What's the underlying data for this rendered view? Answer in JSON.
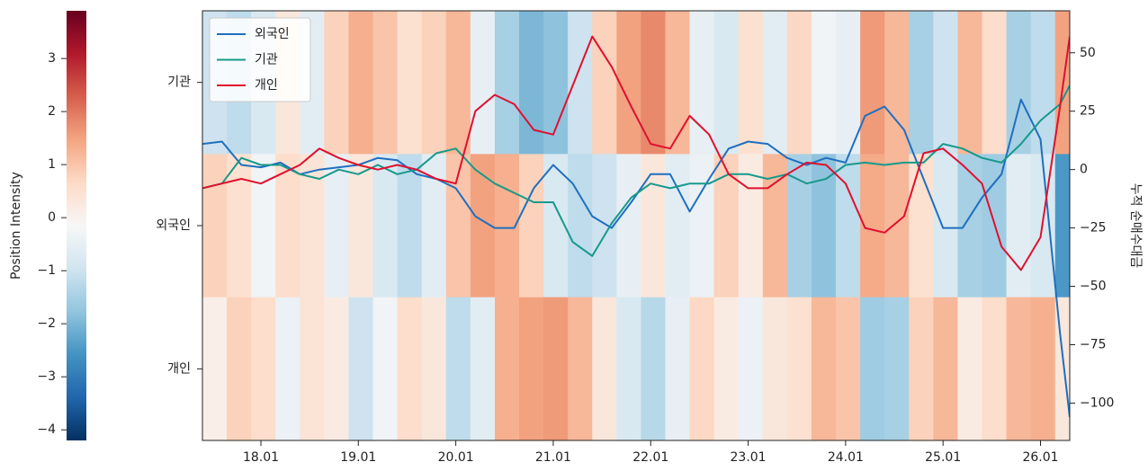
{
  "chart_data": {
    "type": "heatmap",
    "colorbar_label": "Position Intensity",
    "y2label": "누적 순매수대금",
    "rows": [
      "기관",
      "외국인",
      "개인"
    ],
    "colormap": [
      "#053061",
      "#2166ac",
      "#4393c3",
      "#92c5de",
      "#d1e5f0",
      "#f7f7f7",
      "#fddbc7",
      "#f4a582",
      "#d6604d",
      "#b2182b",
      "#67001f"
    ],
    "clim": [
      -4.2,
      3.9
    ],
    "cticks": [
      {
        "value": -4,
        "label": "−4"
      },
      {
        "value": -3,
        "label": "−3"
      },
      {
        "value": -2,
        "label": "−2"
      },
      {
        "value": -1,
        "label": "−1"
      },
      0,
      1,
      2,
      3
    ],
    "heatmap": {
      "x_edges": [
        2017.4,
        2017.65,
        2017.9,
        2018.15,
        2018.4,
        2018.65,
        2018.9,
        2019.15,
        2019.4,
        2019.65,
        2019.9,
        2020.15,
        2020.4,
        2020.65,
        2020.9,
        2021.15,
        2021.4,
        2021.65,
        2021.9,
        2022.15,
        2022.4,
        2022.65,
        2022.9,
        2023.15,
        2023.4,
        2023.65,
        2023.9,
        2024.15,
        2024.4,
        2024.65,
        2024.9,
        2025.15,
        2025.4,
        2025.65,
        2025.9,
        2026.15,
        2026.3
      ],
      "values": [
        [
          -1,
          -1.2,
          -0.8,
          0.3,
          -0.6,
          0.8,
          1.3,
          1.0,
          0.5,
          0.8,
          1.2,
          -0.5,
          -1.5,
          -2,
          -1.8,
          -1.0,
          0.8,
          1.5,
          1.8,
          1.2,
          -0.5,
          -0.8,
          0.5,
          -0.6,
          0.7,
          -0.3,
          -0.5,
          1.6,
          1.2,
          -1.5,
          -1.0,
          1.2,
          0.6,
          -1.5,
          -1.2,
          1.5
        ],
        [
          0.8,
          0.5,
          -0.3,
          0.6,
          0.4,
          -0.5,
          0.3,
          -0.8,
          -1.2,
          -0.6,
          1.0,
          1.5,
          1.3,
          0.8,
          -0.8,
          -1.2,
          -1.0,
          -0.5,
          0.3,
          -0.6,
          -0.4,
          0.8,
          0.2,
          1.2,
          -1.5,
          -1.8,
          -1.2,
          1.4,
          1.2,
          0.5,
          -0.8,
          -1.5,
          -1.6,
          -0.6,
          -0.8,
          -2.5
        ],
        [
          0.1,
          0.8,
          0.6,
          -0.4,
          0.4,
          0.2,
          -1.0,
          -0.3,
          0.6,
          0.3,
          -1.2,
          -0.6,
          1.3,
          1.5,
          1.6,
          1.2,
          0.3,
          -0.8,
          -1.3,
          -0.5,
          0.7,
          0.2,
          -0.4,
          0.3,
          0.5,
          1.2,
          1.0,
          -1.6,
          -1.5,
          0.8,
          1.2,
          0.2,
          0.6,
          1.2,
          1.3,
          0.3
        ]
      ]
    },
    "x": [
      2017.4,
      2017.6,
      2017.8,
      2018.0,
      2018.2,
      2018.4,
      2018.6,
      2018.8,
      2019.0,
      2019.2,
      2019.4,
      2019.6,
      2019.8,
      2020.0,
      2020.2,
      2020.4,
      2020.6,
      2020.8,
      2021.0,
      2021.2,
      2021.4,
      2021.6,
      2021.8,
      2022.0,
      2022.2,
      2022.4,
      2022.6,
      2022.8,
      2023.0,
      2023.2,
      2023.4,
      2023.6,
      2023.8,
      2024.0,
      2024.2,
      2024.4,
      2024.6,
      2024.8,
      2025.0,
      2025.2,
      2025.4,
      2025.6,
      2025.8,
      2026.0,
      2026.2,
      2026.3
    ],
    "series": [
      {
        "name": "외국인",
        "color": "#1f6fc0",
        "axis": "y2",
        "values": [
          11,
          12,
          2,
          1,
          3,
          -2,
          0,
          1,
          2,
          5,
          4,
          -2,
          -4,
          -8,
          -20,
          -25,
          -25,
          -8,
          2,
          -6,
          -20,
          -25,
          -14,
          -2,
          -2,
          -18,
          -4,
          9,
          12,
          11,
          5,
          2,
          5,
          3,
          23,
          27,
          17,
          -4,
          -25,
          -25,
          -12,
          -2,
          30,
          13,
          -70,
          -106
        ]
      },
      {
        "name": "기관",
        "color": "#17998b",
        "axis": "y2",
        "values": [
          -8,
          -6,
          5,
          2,
          2,
          -2,
          -4,
          0,
          -2,
          2,
          -2,
          0,
          7,
          9,
          0,
          -6,
          -10,
          -14,
          -14,
          -31,
          -37,
          -23,
          -12,
          -6,
          -8,
          -6,
          -6,
          -2,
          -2,
          -4,
          -2,
          -6,
          -4,
          2,
          3,
          2,
          3,
          3,
          11,
          9,
          5,
          3,
          11,
          21,
          28,
          36
        ]
      },
      {
        "name": "개인",
        "color": "#e0102f",
        "axis": "y2",
        "values": [
          -8,
          -6,
          -4,
          -6,
          -2,
          2,
          9,
          5,
          2,
          0,
          2,
          0,
          -4,
          -6,
          25,
          32,
          28,
          17,
          15,
          36,
          57,
          44,
          27,
          11,
          9,
          23,
          15,
          -2,
          -8,
          -8,
          -2,
          3,
          2,
          -6,
          -25,
          -27,
          -20,
          7,
          9,
          2,
          -6,
          -33,
          -43,
          -29,
          27,
          57
        ]
      }
    ],
    "xlim": [
      2017.4,
      2026.3
    ],
    "xticks": [
      {
        "value": 2018,
        "label": "18.01"
      },
      {
        "value": 2019,
        "label": "19.01"
      },
      {
        "value": 2020,
        "label": "20.01"
      },
      {
        "value": 2021,
        "label": "21.01"
      },
      {
        "value": 2022,
        "label": "22.01"
      },
      {
        "value": 2023,
        "label": "23.01"
      },
      {
        "value": 2024,
        "label": "24.01"
      },
      {
        "value": 2025,
        "label": "25.01"
      },
      {
        "value": 2026,
        "label": "26.01"
      }
    ],
    "y2lim": [
      -116,
      68
    ],
    "y2ticks": [
      {
        "value": -100,
        "label": "−100"
      },
      {
        "value": -75,
        "label": "−75"
      },
      {
        "value": -50,
        "label": "−50"
      },
      {
        "value": -25,
        "label": "−25"
      },
      0,
      25,
      50
    ],
    "legend": "upper left"
  }
}
